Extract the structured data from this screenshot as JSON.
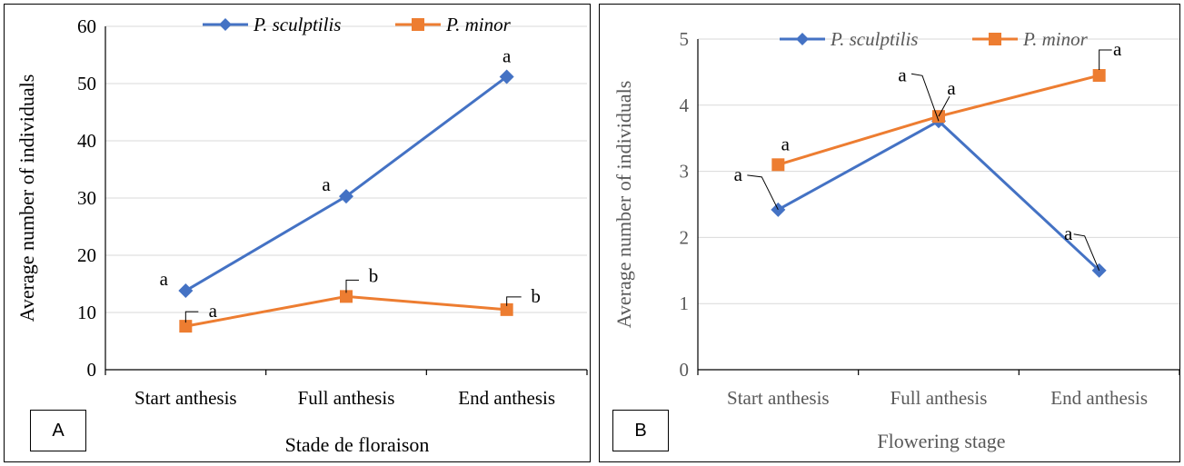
{
  "chart_data": [
    {
      "type": "line",
      "panel_label": "A",
      "categories": [
        "Start anthesis",
        "Full anthesis",
        "End anthesis"
      ],
      "xlabel": "Stade de floraison",
      "ylabel": "Average number of individuals",
      "ylim": [
        0,
        60
      ],
      "yticks": [
        0,
        10,
        20,
        30,
        40,
        50,
        60
      ],
      "grid": true,
      "legend": "top-center",
      "series": [
        {
          "name": "P. sculptilis",
          "color": "#4472C4",
          "marker": "diamond",
          "values": [
            13.8,
            30.3,
            51.2
          ],
          "labels": [
            "a",
            "a",
            "a"
          ]
        },
        {
          "name": "P. minor",
          "color": "#ED7D31",
          "marker": "square",
          "values": [
            7.6,
            12.8,
            10.5
          ],
          "labels": [
            "a",
            "b",
            "b"
          ]
        }
      ]
    },
    {
      "type": "line",
      "panel_label": "B",
      "categories": [
        "Start anthesis",
        "Full anthesis",
        "End anthesis"
      ],
      "xlabel": "Flowering stage",
      "ylabel": "Average number of individuals",
      "ylim": [
        0,
        5
      ],
      "yticks": [
        0,
        1,
        2,
        3,
        4,
        5
      ],
      "grid": true,
      "legend": "top-center",
      "series": [
        {
          "name": "P. sculptilis",
          "color": "#4472C4",
          "marker": "diamond",
          "values": [
            2.42,
            3.76,
            1.5
          ],
          "labels": [
            "a",
            "a",
            "a"
          ]
        },
        {
          "name": "P. minor",
          "color": "#ED7D31",
          "marker": "square",
          "values": [
            3.1,
            3.83,
            4.45
          ],
          "labels": [
            "a",
            "a",
            "a"
          ]
        }
      ]
    }
  ]
}
